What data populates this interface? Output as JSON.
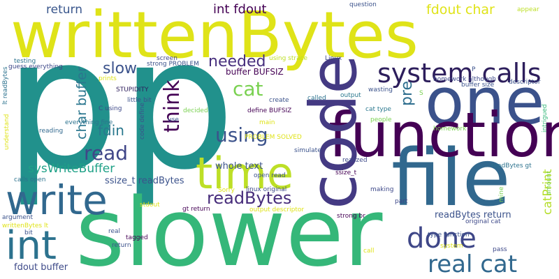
{
  "words": [
    {
      "text": "writtenBytes",
      "color": "#dfe318"
    },
    {
      "text": "p",
      "color": "#21918c"
    },
    {
      "text": "p",
      "color": "#21918c"
    },
    {
      "text": "slower",
      "color": "#35b779"
    },
    {
      "text": "one",
      "color": "#3b528b"
    },
    {
      "text": "file",
      "color": "#31688e"
    },
    {
      "text": "function",
      "color": "#440154"
    },
    {
      "text": "code",
      "color": "#443a83"
    },
    {
      "text": "time",
      "color": "#bddf26"
    },
    {
      "text": "write",
      "color": "#31688e"
    },
    {
      "text": "int",
      "color": "#2c728e"
    },
    {
      "text": "system calls",
      "color": "#2d1e5c"
    },
    {
      "text": "real cat",
      "color": "#31688e"
    },
    {
      "text": "done",
      "color": "#3f4788"
    },
    {
      "text": "cat",
      "color": "#7ad151"
    },
    {
      "text": "think",
      "color": "#440154"
    },
    {
      "text": "using",
      "color": "#3b528b"
    },
    {
      "text": "readBytes",
      "color": "#472d7b"
    },
    {
      "text": "read",
      "color": "#404688"
    },
    {
      "text": "needed",
      "color": "#472f7d"
    },
    {
      "text": "slow",
      "color": "#3b528b"
    },
    {
      "text": "fdin",
      "color": "#2a788e"
    },
    {
      "text": "char buffer",
      "color": "#2a768e"
    },
    {
      "text": "sysWriteBuffer",
      "color": "#1fa187"
    },
    {
      "text": "int fdout",
      "color": "#440154"
    },
    {
      "text": "fdout char",
      "color": "#dfe318"
    },
    {
      "text": "return",
      "color": "#39568c"
    },
    {
      "text": "pre",
      "color": "#2e6e8e"
    },
    {
      "text": "catPrint",
      "color": "#b5de2b"
    },
    {
      "text": "whole text",
      "color": "#3b528b"
    },
    {
      "text": "ssize_t readBytes",
      "color": "#3b528b"
    },
    {
      "text": "buffer BUFSIZ",
      "color": "#440154"
    },
    {
      "text": "fdout buffer",
      "color": "#3e4a89"
    },
    {
      "text": "readBytes return",
      "color": "#3b528b"
    },
    {
      "text": "question",
      "color": "#3b528b"
    },
    {
      "text": "screen",
      "color": "#404688"
    },
    {
      "text": "testing",
      "color": "#2c728e"
    },
    {
      "text": "guess everything",
      "color": "#3e4989"
    },
    {
      "text": "lt readBytes",
      "color": "#2c728e"
    },
    {
      "text": "strong PROBLEM",
      "color": "#3b528b"
    },
    {
      "text": "using strace",
      "color": "#bddf26"
    },
    {
      "text": "Linux",
      "color": "#3e4989"
    },
    {
      "text": "homework although",
      "color": "#3e4a89"
    },
    {
      "text": "buffer size",
      "color": "#3b528b"
    },
    {
      "text": "descriptor",
      "color": "#3b528b"
    },
    {
      "text": "appear",
      "color": "#bddf26"
    },
    {
      "text": "amount",
      "color": "#7ad151"
    },
    {
      "text": "prints",
      "color": "#dfe318"
    },
    {
      "text": "STUPIDITY",
      "color": "#2d1e5c"
    },
    {
      "text": "little bit",
      "color": "#3b528b"
    },
    {
      "text": "C using",
      "color": "#3e4989"
    },
    {
      "text": "code define",
      "color": "#3b528b"
    },
    {
      "text": "everything fine",
      "color": "#2c728e"
    },
    {
      "text": "reading",
      "color": "#31688e"
    },
    {
      "text": "calls open",
      "color": "#2c728e"
    },
    {
      "text": "decided",
      "color": "#7ad151"
    },
    {
      "text": "use",
      "color": "#3b528b"
    },
    {
      "text": "define BUFSIZ",
      "color": "#440154"
    },
    {
      "text": "main",
      "color": "#dfe318"
    },
    {
      "text": "create",
      "color": "#3b528b"
    },
    {
      "text": "called",
      "color": "#2c728e"
    },
    {
      "text": "output",
      "color": "#2a788e"
    },
    {
      "text": "wasting",
      "color": "#3b528b"
    },
    {
      "text": "S",
      "color": "#7ad151"
    },
    {
      "text": "cat type",
      "color": "#2a788e"
    },
    {
      "text": "people",
      "color": "#7ad151"
    },
    {
      "text": "homework",
      "color": "#7ad151"
    },
    {
      "text": "intrigued",
      "color": "#35b779"
    },
    {
      "text": "understand",
      "color": "#dfe318"
    },
    {
      "text": "simulate",
      "color": "#3b528b"
    },
    {
      "text": "open read",
      "color": "#3b528b"
    },
    {
      "text": "realized",
      "color": "#3e4989"
    },
    {
      "text": "ssize_t",
      "color": "#440154"
    },
    {
      "text": "readBytes gt",
      "color": "#2c728e"
    },
    {
      "text": "Sorry",
      "color": "#dfe318"
    },
    {
      "text": "linux original",
      "color": "#3e4989"
    },
    {
      "text": "making",
      "color": "#3e4989"
    },
    {
      "text": "argument",
      "color": "#3b528b"
    },
    {
      "text": "stdout",
      "color": "#dfe318"
    },
    {
      "text": "gt return",
      "color": "#440154"
    },
    {
      "text": "strong br",
      "color": "#440154"
    },
    {
      "text": "mine",
      "color": "#7ad151"
    },
    {
      "text": "original cat",
      "color": "#3e4989"
    },
    {
      "text": "part",
      "color": "#3e4989"
    },
    {
      "text": "writtenBytes lt",
      "color": "#dfe318"
    },
    {
      "text": "output descriptor",
      "color": "#dfe318"
    },
    {
      "text": "PROBLEM SOLVED",
      "color": "#dfe318"
    },
    {
      "text": "bit",
      "color": "#3b528b"
    },
    {
      "text": "real",
      "color": "#3b528b"
    },
    {
      "text": "tagged",
      "color": "#440154"
    },
    {
      "text": "type function",
      "color": "#3b528b"
    },
    {
      "text": "system",
      "color": "#dfe318"
    },
    {
      "text": "call",
      "color": "#dfe318"
    },
    {
      "text": "pass",
      "color": "#3e4989"
    },
    {
      "text": "return",
      "color": "#3b528b"
    },
    {
      "text": "P",
      "color": "#3b528b"
    }
  ]
}
